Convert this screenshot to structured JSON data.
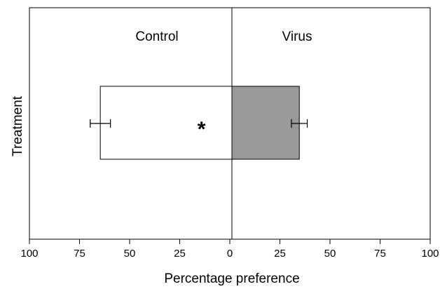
{
  "chart_data": {
    "type": "bar",
    "orientation": "horizontal-diverging",
    "xlabel": "Percentage preference",
    "ylabel": "Treatment",
    "xlim_left": [
      100,
      0
    ],
    "xlim_right": [
      0,
      100
    ],
    "xticks": [
      100,
      75,
      50,
      25,
      0,
      25,
      50,
      75,
      100
    ],
    "grid": false,
    "series": [
      {
        "name": "Control",
        "side": "left",
        "value": 65,
        "error": 5,
        "color": "#ffffff"
      },
      {
        "name": "Virus",
        "side": "right",
        "value": 34,
        "error": 4,
        "color": "#999999"
      }
    ],
    "annotations": [
      {
        "text": "*",
        "side": "left",
        "value": 15
      }
    ]
  }
}
